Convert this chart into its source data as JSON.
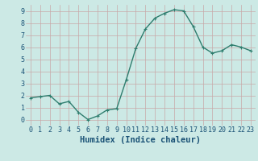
{
  "x": [
    0,
    1,
    2,
    3,
    4,
    5,
    6,
    7,
    8,
    9,
    10,
    11,
    12,
    13,
    14,
    15,
    16,
    17,
    18,
    19,
    20,
    21,
    22,
    23
  ],
  "y": [
    1.8,
    1.9,
    2.0,
    1.3,
    1.5,
    0.6,
    0.0,
    0.3,
    0.8,
    0.9,
    3.3,
    5.9,
    7.5,
    8.4,
    8.8,
    9.1,
    9.0,
    7.7,
    6.0,
    5.5,
    5.7,
    6.2,
    6.0,
    5.7
  ],
  "line_color": "#2e7d6e",
  "marker": "+",
  "marker_size": 3,
  "marker_lw": 0.8,
  "line_width": 1.0,
  "bg_color": "#cce9e5",
  "grid_color": "#c8a8a8",
  "xlabel": "Humidex (Indice chaleur)",
  "xlabel_fontsize": 7.5,
  "xlabel_color": "#1a5276",
  "tick_fontsize": 6,
  "tick_color": "#1a5276",
  "xlim": [
    -0.5,
    23.5
  ],
  "ylim": [
    -0.5,
    9.5
  ],
  "yticks": [
    0,
    1,
    2,
    3,
    4,
    5,
    6,
    7,
    8,
    9
  ],
  "xticks": [
    0,
    1,
    2,
    3,
    4,
    5,
    6,
    7,
    8,
    9,
    10,
    11,
    12,
    13,
    14,
    15,
    16,
    17,
    18,
    19,
    20,
    21,
    22,
    23
  ]
}
